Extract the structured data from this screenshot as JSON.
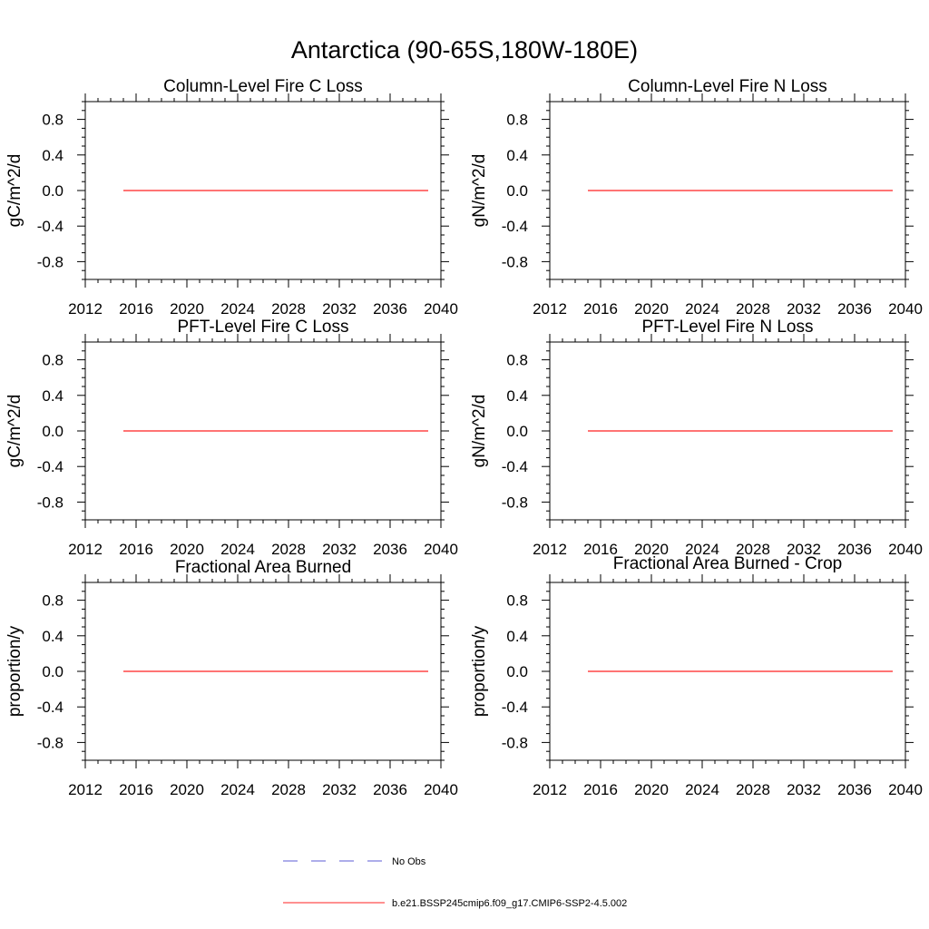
{
  "figure": {
    "title": "Antarctica (90-65S,180W-180E)"
  },
  "legend": {
    "placement": "bottom-center",
    "entries": [
      {
        "label": "No Obs",
        "color": "#5b5bd6",
        "style": "dashed"
      },
      {
        "label": "b.e21.BSSP245cmip6.f09_g17.CMIP6-SSP2-4.5.002",
        "color": "#ff2020",
        "style": "solid"
      }
    ]
  },
  "chart_data": [
    {
      "type": "line",
      "title": "Column-Level Fire C Loss",
      "xlabel": "",
      "ylabel": "gC/m^2/d",
      "xlim": [
        2012,
        2040
      ],
      "ylim": [
        -1.0,
        1.0
      ],
      "xticks": [
        "2012",
        "2016",
        "2020",
        "2024",
        "2028",
        "2032",
        "2036",
        "2040"
      ],
      "yticks": [
        "0.8",
        "0.4",
        "0.0",
        "-0.4",
        "-0.8"
      ],
      "series": [
        {
          "name": "b.e21.BSSP245cmip6.f09_g17.CMIP6-SSP2-4.5.002",
          "color": "#ff2020",
          "x": [
            2015,
            2039
          ],
          "values": [
            0.0,
            0.0
          ]
        }
      ]
    },
    {
      "type": "line",
      "title": "Column-Level Fire N Loss",
      "xlabel": "",
      "ylabel": "gN/m^2/d",
      "xlim": [
        2012,
        2040
      ],
      "ylim": [
        -1.0,
        1.0
      ],
      "xticks": [
        "2012",
        "2016",
        "2020",
        "2024",
        "2028",
        "2032",
        "2036",
        "2040"
      ],
      "yticks": [
        "0.8",
        "0.4",
        "0.0",
        "-0.4",
        "-0.8"
      ],
      "series": [
        {
          "name": "b.e21.BSSP245cmip6.f09_g17.CMIP6-SSP2-4.5.002",
          "color": "#ff2020",
          "x": [
            2015,
            2039
          ],
          "values": [
            0.0,
            0.0
          ]
        }
      ]
    },
    {
      "type": "line",
      "title": "PFT-Level Fire C Loss",
      "xlabel": "",
      "ylabel": "gC/m^2/d",
      "xlim": [
        2012,
        2040
      ],
      "ylim": [
        -1.0,
        1.0
      ],
      "xticks": [
        "2012",
        "2016",
        "2020",
        "2024",
        "2028",
        "2032",
        "2036",
        "2040"
      ],
      "yticks": [
        "0.8",
        "0.4",
        "0.0",
        "-0.4",
        "-0.8"
      ],
      "series": [
        {
          "name": "b.e21.BSSP245cmip6.f09_g17.CMIP6-SSP2-4.5.002",
          "color": "#ff2020",
          "x": [
            2015,
            2039
          ],
          "values": [
            0.0,
            0.0
          ]
        }
      ]
    },
    {
      "type": "line",
      "title": "PFT-Level Fire N Loss",
      "xlabel": "",
      "ylabel": "gN/m^2/d",
      "xlim": [
        2012,
        2040
      ],
      "ylim": [
        -1.0,
        1.0
      ],
      "xticks": [
        "2012",
        "2016",
        "2020",
        "2024",
        "2028",
        "2032",
        "2036",
        "2040"
      ],
      "yticks": [
        "0.8",
        "0.4",
        "0.0",
        "-0.4",
        "-0.8"
      ],
      "series": [
        {
          "name": "b.e21.BSSP245cmip6.f09_g17.CMIP6-SSP2-4.5.002",
          "color": "#ff2020",
          "x": [
            2015,
            2039
          ],
          "values": [
            0.0,
            0.0
          ]
        }
      ]
    },
    {
      "type": "line",
      "title": "Fractional Area Burned",
      "xlabel": "",
      "ylabel": "proportion/y",
      "xlim": [
        2012,
        2040
      ],
      "ylim": [
        -1.0,
        1.0
      ],
      "xticks": [
        "2012",
        "2016",
        "2020",
        "2024",
        "2028",
        "2032",
        "2036",
        "2040"
      ],
      "yticks": [
        "0.8",
        "0.4",
        "0.0",
        "-0.4",
        "-0.8"
      ],
      "series": [
        {
          "name": "b.e21.BSSP245cmip6.f09_g17.CMIP6-SSP2-4.5.002",
          "color": "#ff2020",
          "x": [
            2015,
            2039
          ],
          "values": [
            0.0,
            0.0
          ]
        }
      ]
    },
    {
      "type": "line",
      "title": "Fractional Area Burned - Crop",
      "xlabel": "",
      "ylabel": "proportion/y",
      "xlim": [
        2012,
        2040
      ],
      "ylim": [
        -1.0,
        1.0
      ],
      "xticks": [
        "2012",
        "2016",
        "2020",
        "2024",
        "2028",
        "2032",
        "2036",
        "2040"
      ],
      "yticks": [
        "0.8",
        "0.4",
        "0.0",
        "-0.4",
        "-0.8"
      ],
      "series": [
        {
          "name": "b.e21.BSSP245cmip6.f09_g17.CMIP6-SSP2-4.5.002",
          "color": "#ff2020",
          "x": [
            2015,
            2039
          ],
          "values": [
            0.0,
            0.0
          ]
        }
      ]
    }
  ]
}
